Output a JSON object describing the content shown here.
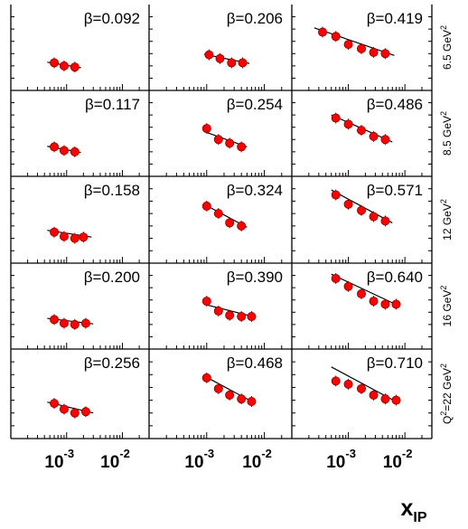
{
  "chart_data": {
    "type": "scatter",
    "layout": "grid of 5 rows (Q2) by 3 columns",
    "xlabel": "x",
    "xlabel_sub": "IP",
    "x_scale": "log",
    "xlim": [
      0.0001,
      0.03
    ],
    "x_ticks": [
      {
        "base": "10",
        "exp": "-3"
      },
      {
        "base": "10",
        "exp": "-2"
      }
    ],
    "colors": {
      "points": "#ff0000",
      "point_edge": "#8b0000",
      "curve": "#000000",
      "frame": "#000000"
    },
    "grid": false,
    "rows": [
      {
        "q2_label": "6.5 GeV",
        "q2_sup": "2",
        "q2_prefix": ""
      },
      {
        "q2_label": "8.5 GeV",
        "q2_sup": "2",
        "q2_prefix": ""
      },
      {
        "q2_label": "12 GeV",
        "q2_sup": "2",
        "q2_prefix": ""
      },
      {
        "q2_label": "16 GeV",
        "q2_sup": "2",
        "q2_prefix": ""
      },
      {
        "q2_label": "22 GeV",
        "q2_sup": "2",
        "q2_prefix": "Q"
      }
    ],
    "panels": [
      {
        "row": 0,
        "col": 0,
        "beta_label": "β=0.092",
        "x": [
          0.0006,
          0.0009,
          0.0014
        ],
        "y": [
          1.05,
          1.0,
          0.98
        ],
        "fit_x": [
          0.00045,
          0.0018
        ],
        "fit_y": [
          1.06,
          0.97
        ]
      },
      {
        "row": 0,
        "col": 1,
        "beta_label": "β=0.206",
        "x": [
          0.0011,
          0.0017,
          0.0027,
          0.0042
        ],
        "y": [
          1.18,
          1.12,
          1.05,
          1.05
        ],
        "fit_x": [
          0.0009,
          0.0055
        ],
        "fit_y": [
          1.19,
          1.04
        ]
      },
      {
        "row": 0,
        "col": 2,
        "beta_label": "β=0.419",
        "x": [
          0.00035,
          0.0006,
          0.001,
          0.0017,
          0.0028,
          0.0045
        ],
        "y": [
          1.55,
          1.48,
          1.35,
          1.28,
          1.22,
          1.2
        ],
        "fit_x": [
          0.00025,
          0.0065
        ],
        "fit_y": [
          1.62,
          1.17
        ]
      },
      {
        "row": 1,
        "col": 0,
        "beta_label": "β=0.117",
        "x": [
          0.0006,
          0.0009,
          0.0014
        ],
        "y": [
          1.08,
          1.02,
          1.0
        ],
        "fit_x": [
          0.00045,
          0.0018
        ],
        "fit_y": [
          1.09,
          0.99
        ]
      },
      {
        "row": 1,
        "col": 1,
        "beta_label": "β=0.254",
        "x": [
          0.001,
          0.0016,
          0.0025,
          0.004
        ],
        "y": [
          1.38,
          1.2,
          1.14,
          1.08
        ],
        "fit_x": [
          0.0009,
          0.005
        ],
        "fit_y": [
          1.33,
          1.08
        ]
      },
      {
        "row": 1,
        "col": 2,
        "beta_label": "β=0.486",
        "x": [
          0.0006,
          0.001,
          0.0017,
          0.0028,
          0.0045
        ],
        "y": [
          1.55,
          1.45,
          1.35,
          1.25,
          1.2
        ],
        "fit_x": [
          0.0005,
          0.006
        ],
        "fit_y": [
          1.6,
          1.16
        ]
      },
      {
        "row": 2,
        "col": 0,
        "beta_label": "β=0.158",
        "x": [
          0.0006,
          0.0009,
          0.0014,
          0.002
        ],
        "y": [
          1.1,
          1.03,
          1.0,
          1.02
        ],
        "fit_x": [
          0.00045,
          0.0028
        ],
        "fit_y": [
          1.13,
          1.02
        ]
      },
      {
        "row": 2,
        "col": 1,
        "beta_label": "β=0.324",
        "x": [
          0.001,
          0.0016,
          0.0025,
          0.004
        ],
        "y": [
          1.52,
          1.4,
          1.25,
          1.2
        ],
        "fit_x": [
          0.0009,
          0.005
        ],
        "fit_y": [
          1.55,
          1.18
        ]
      },
      {
        "row": 2,
        "col": 2,
        "beta_label": "β=0.571",
        "x": [
          0.0006,
          0.001,
          0.0017,
          0.0028,
          0.0045
        ],
        "y": [
          1.7,
          1.55,
          1.45,
          1.35,
          1.28
        ],
        "fit_x": [
          0.0005,
          0.006
        ],
        "fit_y": [
          1.78,
          1.25
        ]
      },
      {
        "row": 3,
        "col": 0,
        "beta_label": "β=0.200",
        "x": [
          0.0006,
          0.0009,
          0.0014,
          0.0022
        ],
        "y": [
          1.08,
          1.02,
          1.0,
          1.02
        ],
        "fit_x": [
          0.00045,
          0.003
        ],
        "fit_y": [
          1.1,
          1.01
        ]
      },
      {
        "row": 3,
        "col": 1,
        "beta_label": "β=0.390",
        "x": [
          0.001,
          0.0016,
          0.0025,
          0.004,
          0.006
        ],
        "y": [
          1.38,
          1.22,
          1.15,
          1.13,
          1.13
        ],
        "fit_x": [
          0.0009,
          0.007
        ],
        "fit_y": [
          1.33,
          1.12
        ]
      },
      {
        "row": 3,
        "col": 2,
        "beta_label": "β=0.640",
        "x": [
          0.0006,
          0.001,
          0.0017,
          0.0028,
          0.0045,
          0.007
        ],
        "y": [
          1.75,
          1.62,
          1.5,
          1.38,
          1.33,
          1.33
        ],
        "fit_x": [
          0.0005,
          0.008
        ],
        "fit_y": [
          1.82,
          1.3
        ]
      },
      {
        "row": 4,
        "col": 0,
        "beta_label": "β=0.256",
        "x": [
          0.0006,
          0.0009,
          0.0014,
          0.0022
        ],
        "y": [
          1.15,
          1.06,
          1.0,
          1.02
        ],
        "fit_x": [
          0.00045,
          0.003
        ],
        "fit_y": [
          1.17,
          1.0
        ]
      },
      {
        "row": 4,
        "col": 1,
        "beta_label": "β=0.468",
        "x": [
          0.001,
          0.0016,
          0.0025,
          0.004,
          0.006
        ],
        "y": [
          1.55,
          1.38,
          1.28,
          1.22,
          1.18
        ],
        "fit_x": [
          0.0009,
          0.007
        ],
        "fit_y": [
          1.58,
          1.15
        ]
      },
      {
        "row": 4,
        "col": 2,
        "beta_label": "β=0.710",
        "x": [
          0.0006,
          0.001,
          0.0017,
          0.0028,
          0.0045,
          0.007
        ],
        "y": [
          1.5,
          1.45,
          1.38,
          1.28,
          1.22,
          1.2
        ],
        "fit_x": [
          0.0005,
          0.008
        ],
        "fit_y": [
          1.72,
          1.15
        ]
      }
    ],
    "ylim": [
      0.6,
      2.0
    ]
  }
}
